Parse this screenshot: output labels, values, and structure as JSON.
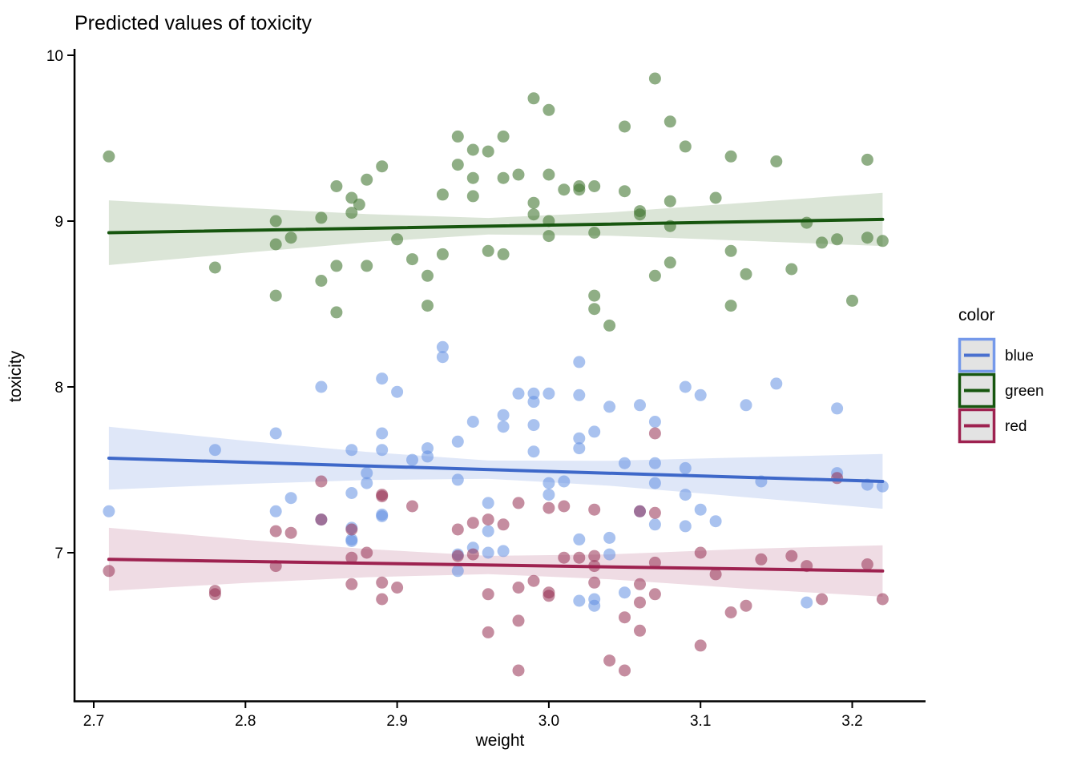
{
  "title": "Predicted values of toxicity",
  "axes": {
    "x": {
      "label": "weight",
      "tick_labels": [
        "2.7",
        "2.8",
        "2.9",
        "3.0",
        "3.1",
        "3.2"
      ]
    },
    "y": {
      "label": "toxicity",
      "tick_labels": [
        "10",
        "9",
        "8",
        "7"
      ]
    }
  },
  "legend": {
    "title": "color",
    "entries": [
      {
        "label": "blue",
        "border_color": "#7599ea",
        "line_color": "#4a70cf",
        "key_fill": "#e3e3e3"
      },
      {
        "label": "green",
        "border_color": "#17560f",
        "line_color": "#17560f",
        "key_fill": "#e3e3e3"
      },
      {
        "label": "red",
        "border_color": "#9e2250",
        "line_color": "#9e2250",
        "key_fill": "#e3e3e3"
      }
    ]
  },
  "chart_data": {
    "type": "scatter",
    "title": "Predicted values of toxicity",
    "xlabel": "weight",
    "ylabel": "toxicity",
    "xlim": [
      2.687,
      3.249
    ],
    "ylim": [
      6.1,
      10.03
    ],
    "x_ticks": [
      2.7,
      2.8,
      2.9,
      3.0,
      3.1,
      3.2
    ],
    "y_ticks": [
      10,
      9,
      8,
      7
    ],
    "grid": false,
    "legend_title": "color",
    "legend_position": "right",
    "point_radius_px": 7.5,
    "series": [
      {
        "name": "green",
        "point_color": "#447834",
        "point_opacity": 0.6,
        "line_color": "#17560f",
        "ribbon_color": "#dbe5d7",
        "trend": {
          "x": [
            2.71,
            3.22
          ],
          "y": [
            8.93,
            9.01
          ]
        },
        "ribbon": {
          "x": [
            2.71,
            2.8,
            2.88,
            2.96,
            3.04,
            3.13,
            3.22
          ],
          "top": [
            9.125,
            9.079,
            9.042,
            9.019,
            9.052,
            9.111,
            9.17
          ],
          "bottom": [
            8.735,
            8.809,
            8.872,
            8.919,
            8.912,
            8.881,
            8.85
          ]
        },
        "points": [
          [
            2.71,
            9.39
          ],
          [
            2.78,
            8.72
          ],
          [
            2.82,
            9.0
          ],
          [
            2.82,
            8.86
          ],
          [
            2.83,
            8.9
          ],
          [
            2.82,
            8.55
          ],
          [
            2.85,
            9.02
          ],
          [
            2.85,
            8.64
          ],
          [
            2.86,
            9.21
          ],
          [
            2.87,
            9.05
          ],
          [
            2.86,
            8.73
          ],
          [
            2.86,
            8.45
          ],
          [
            2.87,
            9.14
          ],
          [
            2.875,
            9.1
          ],
          [
            2.88,
            9.25
          ],
          [
            2.88,
            8.73
          ],
          [
            2.89,
            9.33
          ],
          [
            2.9,
            8.89
          ],
          [
            2.91,
            8.77
          ],
          [
            2.92,
            8.67
          ],
          [
            2.92,
            8.49
          ],
          [
            2.93,
            9.16
          ],
          [
            2.93,
            8.8
          ],
          [
            2.94,
            9.51
          ],
          [
            2.94,
            9.34
          ],
          [
            2.95,
            9.43
          ],
          [
            2.95,
            9.26
          ],
          [
            2.95,
            9.15
          ],
          [
            2.96,
            9.42
          ],
          [
            2.96,
            8.82
          ],
          [
            2.97,
            9.51
          ],
          [
            2.97,
            9.26
          ],
          [
            2.97,
            8.8
          ],
          [
            2.98,
            9.28
          ],
          [
            2.99,
            9.74
          ],
          [
            2.99,
            9.11
          ],
          [
            2.99,
            9.04
          ],
          [
            3.0,
            9.67
          ],
          [
            3.0,
            9.28
          ],
          [
            3.0,
            9.0
          ],
          [
            3.0,
            8.91
          ],
          [
            3.01,
            9.19
          ],
          [
            3.02,
            9.21
          ],
          [
            3.02,
            9.19
          ],
          [
            3.03,
            9.21
          ],
          [
            3.03,
            8.93
          ],
          [
            3.03,
            8.55
          ],
          [
            3.03,
            8.47
          ],
          [
            3.04,
            8.37
          ],
          [
            3.05,
            9.57
          ],
          [
            3.05,
            9.18
          ],
          [
            3.06,
            9.06
          ],
          [
            3.06,
            9.04
          ],
          [
            3.07,
            9.86
          ],
          [
            3.07,
            8.67
          ],
          [
            3.08,
            9.6
          ],
          [
            3.08,
            9.12
          ],
          [
            3.08,
            8.97
          ],
          [
            3.08,
            8.75
          ],
          [
            3.09,
            9.45
          ],
          [
            3.11,
            9.14
          ],
          [
            3.12,
            9.39
          ],
          [
            3.12,
            8.82
          ],
          [
            3.12,
            8.49
          ],
          [
            3.13,
            8.68
          ],
          [
            3.15,
            9.36
          ],
          [
            3.16,
            8.71
          ],
          [
            3.17,
            8.99
          ],
          [
            3.18,
            8.87
          ],
          [
            3.19,
            8.89
          ],
          [
            3.2,
            8.52
          ],
          [
            3.21,
            9.37
          ],
          [
            3.21,
            8.9
          ],
          [
            3.22,
            8.88
          ]
        ]
      },
      {
        "name": "blue",
        "point_color": "#6390e2",
        "point_opacity": 0.55,
        "line_color": "#3e68c9",
        "ribbon_color": "#dfe7f8",
        "trend": {
          "x": [
            2.71,
            3.22
          ],
          "y": [
            7.57,
            7.43
          ]
        },
        "ribbon": {
          "x": [
            2.71,
            2.8,
            2.88,
            2.96,
            3.04,
            3.13,
            3.22
          ],
          "top": [
            7.76,
            7.675,
            7.608,
            7.556,
            7.554,
            7.575,
            7.595
          ],
          "bottom": [
            7.38,
            7.415,
            7.438,
            7.446,
            7.404,
            7.335,
            7.265
          ]
        },
        "points": [
          [
            2.71,
            7.25
          ],
          [
            2.78,
            7.62
          ],
          [
            2.82,
            7.72
          ],
          [
            2.82,
            7.25
          ],
          [
            2.83,
            7.33
          ],
          [
            2.85,
            8.0
          ],
          [
            2.85,
            7.2
          ],
          [
            2.87,
            7.62
          ],
          [
            2.87,
            7.36
          ],
          [
            2.87,
            7.15
          ],
          [
            2.87,
            7.08
          ],
          [
            2.87,
            7.07
          ],
          [
            2.88,
            7.48
          ],
          [
            2.88,
            7.42
          ],
          [
            2.89,
            8.05
          ],
          [
            2.89,
            7.72
          ],
          [
            2.89,
            7.62
          ],
          [
            2.89,
            7.23
          ],
          [
            2.89,
            7.22
          ],
          [
            2.9,
            7.97
          ],
          [
            2.91,
            7.56
          ],
          [
            2.92,
            7.63
          ],
          [
            2.92,
            7.58
          ],
          [
            2.93,
            8.24
          ],
          [
            2.93,
            8.18
          ],
          [
            2.94,
            7.67
          ],
          [
            2.94,
            7.44
          ],
          [
            2.94,
            6.99
          ],
          [
            2.94,
            6.89
          ],
          [
            2.95,
            7.79
          ],
          [
            2.95,
            7.03
          ],
          [
            2.96,
            7.3
          ],
          [
            2.96,
            7.13
          ],
          [
            2.96,
            7.0
          ],
          [
            2.97,
            7.83
          ],
          [
            2.97,
            7.76
          ],
          [
            2.97,
            7.01
          ],
          [
            2.98,
            7.96
          ],
          [
            2.99,
            7.96
          ],
          [
            2.99,
            7.91
          ],
          [
            2.99,
            7.77
          ],
          [
            2.99,
            7.61
          ],
          [
            3.0,
            7.96
          ],
          [
            3.0,
            7.42
          ],
          [
            3.0,
            7.35
          ],
          [
            3.01,
            7.43
          ],
          [
            3.02,
            8.15
          ],
          [
            3.02,
            7.95
          ],
          [
            3.02,
            7.69
          ],
          [
            3.02,
            7.63
          ],
          [
            3.02,
            7.08
          ],
          [
            3.02,
            6.71
          ],
          [
            3.03,
            7.73
          ],
          [
            3.03,
            6.72
          ],
          [
            3.03,
            6.68
          ],
          [
            3.04,
            7.88
          ],
          [
            3.04,
            7.09
          ],
          [
            3.04,
            6.99
          ],
          [
            3.05,
            7.54
          ],
          [
            3.05,
            6.76
          ],
          [
            3.06,
            7.89
          ],
          [
            3.06,
            7.25
          ],
          [
            3.07,
            7.79
          ],
          [
            3.07,
            7.54
          ],
          [
            3.07,
            7.42
          ],
          [
            3.07,
            7.17
          ],
          [
            3.09,
            8.0
          ],
          [
            3.09,
            7.51
          ],
          [
            3.09,
            7.35
          ],
          [
            3.09,
            7.16
          ],
          [
            3.1,
            7.95
          ],
          [
            3.1,
            7.26
          ],
          [
            3.11,
            7.19
          ],
          [
            3.13,
            7.89
          ],
          [
            3.14,
            7.43
          ],
          [
            3.15,
            8.02
          ],
          [
            3.17,
            6.7
          ],
          [
            3.19,
            7.87
          ],
          [
            3.19,
            7.48
          ],
          [
            3.21,
            7.41
          ],
          [
            3.22,
            7.4
          ]
        ]
      },
      {
        "name": "red",
        "point_color": "#953052",
        "point_opacity": 0.55,
        "line_color": "#9e2250",
        "ribbon_color": "#efdce4",
        "trend": {
          "x": [
            2.71,
            3.22
          ],
          "y": [
            6.96,
            6.89
          ]
        },
        "ribbon": {
          "x": [
            2.71,
            2.8,
            2.88,
            2.96,
            3.04,
            3.13,
            3.22
          ],
          "top": [
            7.15,
            7.078,
            7.022,
            6.981,
            6.99,
            7.023,
            7.045
          ],
          "bottom": [
            6.77,
            6.818,
            6.852,
            6.871,
            6.84,
            6.783,
            6.735
          ]
        },
        "points": [
          [
            2.71,
            6.89
          ],
          [
            2.78,
            6.77
          ],
          [
            2.78,
            6.75
          ],
          [
            2.82,
            7.13
          ],
          [
            2.82,
            6.92
          ],
          [
            2.83,
            7.12
          ],
          [
            2.85,
            7.43
          ],
          [
            2.85,
            7.2
          ],
          [
            2.87,
            7.14
          ],
          [
            2.87,
            6.97
          ],
          [
            2.87,
            6.81
          ],
          [
            2.88,
            7.0
          ],
          [
            2.89,
            7.35
          ],
          [
            2.89,
            7.34
          ],
          [
            2.89,
            6.82
          ],
          [
            2.89,
            6.72
          ],
          [
            2.9,
            6.79
          ],
          [
            2.91,
            7.28
          ],
          [
            2.94,
            7.14
          ],
          [
            2.94,
            6.98
          ],
          [
            2.95,
            7.18
          ],
          [
            2.95,
            6.99
          ],
          [
            2.96,
            7.2
          ],
          [
            2.96,
            6.75
          ],
          [
            2.96,
            6.52
          ],
          [
            2.97,
            7.17
          ],
          [
            2.98,
            7.3
          ],
          [
            2.98,
            6.79
          ],
          [
            2.98,
            6.59
          ],
          [
            2.98,
            6.29
          ],
          [
            2.99,
            6.83
          ],
          [
            3.0,
            7.27
          ],
          [
            3.0,
            6.76
          ],
          [
            3.0,
            6.74
          ],
          [
            3.01,
            7.28
          ],
          [
            3.01,
            6.97
          ],
          [
            3.02,
            6.97
          ],
          [
            3.03,
            7.26
          ],
          [
            3.03,
            6.98
          ],
          [
            3.03,
            6.92
          ],
          [
            3.03,
            6.82
          ],
          [
            3.04,
            6.35
          ],
          [
            3.05,
            6.61
          ],
          [
            3.05,
            6.29
          ],
          [
            3.06,
            7.25
          ],
          [
            3.06,
            6.81
          ],
          [
            3.06,
            6.7
          ],
          [
            3.06,
            6.53
          ],
          [
            3.07,
            7.72
          ],
          [
            3.07,
            7.24
          ],
          [
            3.07,
            6.94
          ],
          [
            3.07,
            6.75
          ],
          [
            3.1,
            7.0
          ],
          [
            3.1,
            6.44
          ],
          [
            3.11,
            6.87
          ],
          [
            3.12,
            6.64
          ],
          [
            3.13,
            6.68
          ],
          [
            3.14,
            6.96
          ],
          [
            3.16,
            6.98
          ],
          [
            3.17,
            6.92
          ],
          [
            3.18,
            6.72
          ],
          [
            3.19,
            7.45
          ],
          [
            3.21,
            6.93
          ],
          [
            3.22,
            6.72
          ]
        ]
      }
    ]
  }
}
